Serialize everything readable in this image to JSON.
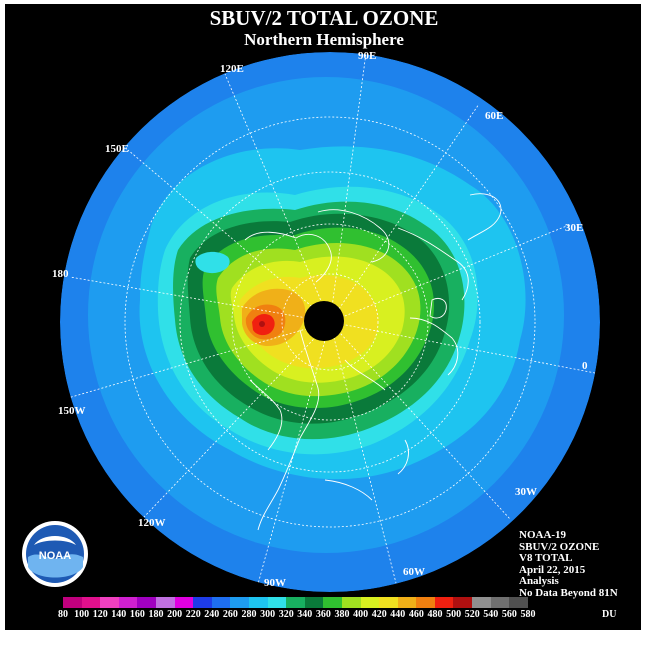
{
  "title": "SBUV/2 TOTAL OZONE",
  "subtitle": "Northern Hemisphere",
  "longitude_labels": [
    "90E",
    "60E",
    "30E",
    "0",
    "30W",
    "60W",
    "90W",
    "120W",
    "150W",
    "180",
    "150E",
    "120E"
  ],
  "info": {
    "satellite": "NOAA-19",
    "instrument": "SBUV/2 OZONE",
    "version": "V8 TOTAL",
    "date": "April 22, 2015",
    "type": "Analysis",
    "note": "No Data Beyond 81N"
  },
  "logo_text": "NOAA",
  "colorbar": {
    "units": "DU",
    "labels": [
      "80",
      "100",
      "120",
      "140",
      "160",
      "180",
      "200",
      "220",
      "240",
      "260",
      "280",
      "300",
      "320",
      "340",
      "360",
      "380",
      "400",
      "420",
      "440",
      "460",
      "480",
      "500",
      "520",
      "540",
      "560",
      "580"
    ],
    "colors": [
      "#c0007e",
      "#e0108c",
      "#f040c0",
      "#d020d0",
      "#a000c0",
      "#c070e0",
      "#e000e0",
      "#1e3ce8",
      "#1e6ef0",
      "#1e9cf0",
      "#1ec4f0",
      "#30e0e8",
      "#18b060",
      "#0a7a3a",
      "#30c030",
      "#a0e020",
      "#d8f020",
      "#f0e020",
      "#f0b018",
      "#f08010",
      "#f02010",
      "#b01010",
      "#909090",
      "#707070",
      "#505050"
    ]
  }
}
